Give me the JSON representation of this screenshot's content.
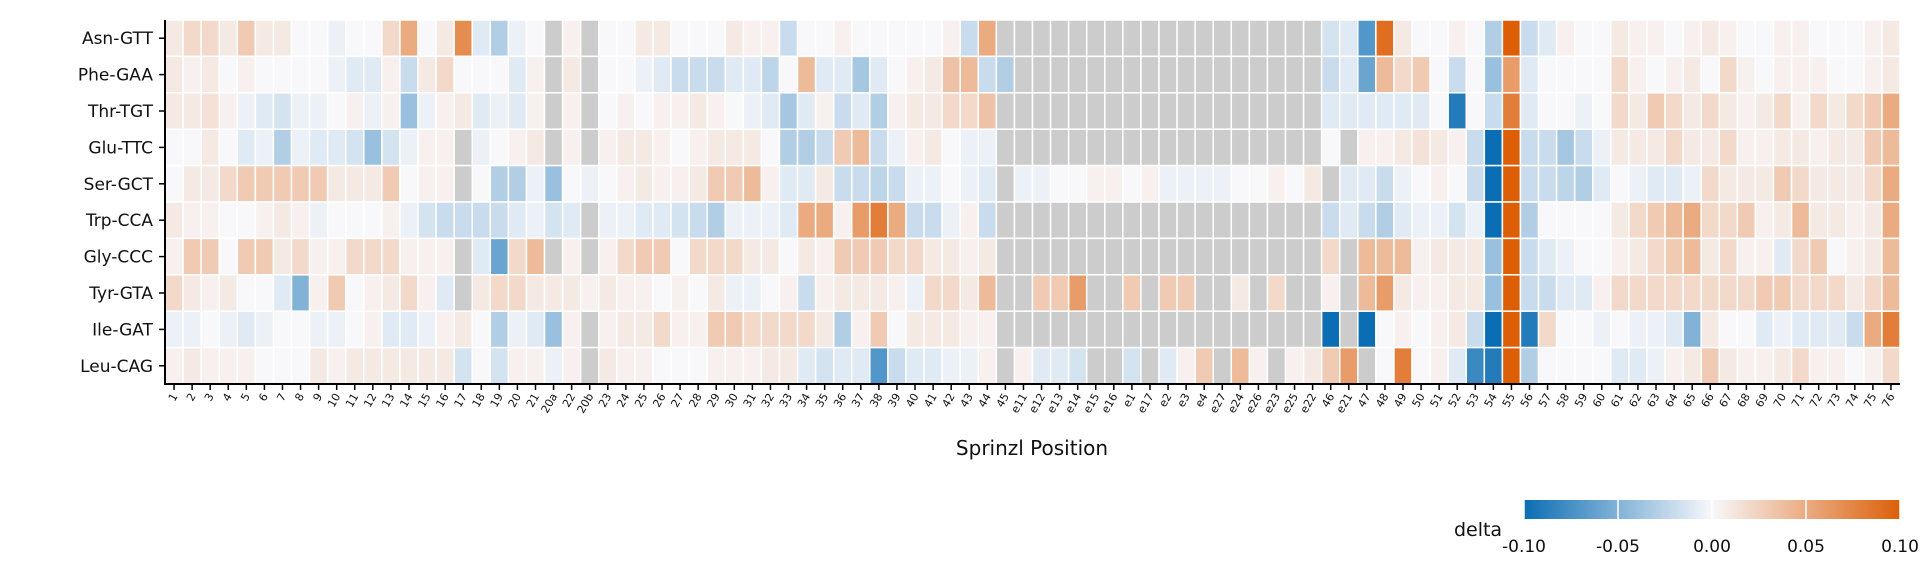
{
  "chart_data": {
    "type": "heatmap",
    "x_label": "Sprinzl Position",
    "categories": [
      "1",
      "2",
      "3",
      "4",
      "5",
      "6",
      "7",
      "8",
      "9",
      "10",
      "11",
      "12",
      "13",
      "14",
      "15",
      "16",
      "17",
      "18",
      "19",
      "20",
      "21",
      "20a",
      "22",
      "20b",
      "23",
      "24",
      "25",
      "26",
      "27",
      "28",
      "29",
      "30",
      "31",
      "32",
      "33",
      "34",
      "35",
      "36",
      "37",
      "38",
      "39",
      "40",
      "41",
      "42",
      "43",
      "44",
      "45",
      "e11",
      "e12",
      "e13",
      "e14",
      "e15",
      "e16",
      "e1",
      "e17",
      "e2",
      "e3",
      "e4",
      "e27",
      "e24",
      "e26",
      "e23",
      "e25",
      "e22",
      "46",
      "e21",
      "47",
      "48",
      "49",
      "50",
      "51",
      "52",
      "53",
      "54",
      "55",
      "56",
      "57",
      "58",
      "59",
      "60",
      "61",
      "62",
      "63",
      "64",
      "65",
      "66",
      "67",
      "68",
      "69",
      "70",
      "71",
      "72",
      "73",
      "74",
      "75",
      "76"
    ],
    "rows": [
      "Asn-GTT",
      "Phe-GAA",
      "Thr-TGT",
      "Glu-TTC",
      "Ser-GCT",
      "Trp-CCA",
      "Gly-CCC",
      "Tyr-GTA",
      "Ile-GAT",
      "Leu-CAG"
    ],
    "values": [
      [
        0.01,
        0.02,
        0.02,
        0.01,
        0.03,
        0.01,
        0.01,
        0,
        0,
        -0.005,
        0,
        0,
        0.02,
        0.05,
        0,
        0.01,
        0.07,
        -0.01,
        -0.03,
        -0.005,
        0,
        null,
        0.005,
        null,
        0,
        0,
        0.01,
        0.01,
        0,
        0,
        0,
        0.01,
        0.005,
        0.005,
        -0.02,
        0,
        0,
        0.005,
        0,
        0,
        0,
        0,
        0,
        0.005,
        -0.02,
        0.05,
        null,
        null,
        null,
        null,
        null,
        null,
        null,
        null,
        null,
        null,
        null,
        null,
        null,
        null,
        null,
        null,
        null,
        null,
        -0.015,
        -0.01,
        -0.07,
        0.09,
        0.01,
        0,
        0,
        0.005,
        0,
        -0.03,
        0.1,
        -0.02,
        -0.01,
        0.005,
        0,
        0,
        0.01,
        0.005,
        0.005,
        0,
        0.005,
        0.01,
        0.005,
        0,
        0,
        0.005,
        0.005,
        0,
        0,
        0,
        0.005,
        0.01
      ],
      [
        0.01,
        0.005,
        0.01,
        0,
        0.005,
        0,
        0,
        0,
        0,
        -0.005,
        -0.01,
        -0.01,
        0.005,
        -0.02,
        0.01,
        0.02,
        0,
        0,
        0,
        -0.01,
        0.005,
        null,
        0.01,
        null,
        0,
        0,
        -0.005,
        -0.01,
        -0.02,
        -0.02,
        -0.02,
        -0.01,
        -0.01,
        -0.025,
        0,
        0.04,
        -0.01,
        -0.01,
        -0.035,
        -0.01,
        0,
        0.005,
        0.01,
        0.035,
        0.04,
        -0.02,
        -0.03,
        null,
        null,
        null,
        null,
        null,
        null,
        null,
        null,
        null,
        null,
        null,
        null,
        null,
        null,
        null,
        null,
        null,
        -0.02,
        -0.01,
        -0.06,
        0.04,
        0.02,
        0.03,
        0,
        -0.02,
        0,
        -0.04,
        0.06,
        -0.01,
        0,
        0,
        0,
        0,
        0.02,
        0.005,
        0,
        0.005,
        0.01,
        0,
        0.02,
        0.005,
        0,
        0.005,
        0.005,
        0.005,
        0,
        0,
        0.005,
        0.01
      ],
      [
        0.01,
        0.01,
        0.015,
        0.005,
        -0.005,
        -0.01,
        -0.015,
        -0.005,
        -0.005,
        0,
        0.005,
        -0.005,
        0.005,
        -0.04,
        -0.005,
        0.005,
        0.01,
        -0.01,
        -0.005,
        -0.01,
        0.005,
        null,
        0.005,
        null,
        0,
        0.005,
        0,
        0.005,
        0.005,
        0.01,
        0.005,
        0,
        -0.005,
        -0.01,
        -0.035,
        -0.01,
        0.005,
        -0.02,
        -0.01,
        -0.03,
        0.005,
        0.01,
        0.01,
        0.02,
        0.02,
        0.035,
        null,
        null,
        null,
        null,
        null,
        null,
        null,
        null,
        null,
        null,
        null,
        null,
        null,
        null,
        null,
        null,
        null,
        null,
        -0.01,
        -0.01,
        -0.01,
        -0.01,
        -0.01,
        -0.01,
        0,
        -0.09,
        0,
        -0.02,
        0.08,
        -0.01,
        0,
        0,
        -0.005,
        0,
        0.02,
        0.01,
        0.03,
        0.02,
        0.01,
        0.02,
        0.01,
        0.005,
        0.01,
        0.02,
        0.005,
        0.02,
        0.01,
        0.02,
        0.03,
        0.05
      ],
      [
        0,
        0,
        0.01,
        0,
        -0.01,
        -0.005,
        -0.03,
        -0.005,
        -0.01,
        -0.01,
        -0.015,
        -0.04,
        -0.015,
        -0.005,
        0.005,
        0.005,
        null,
        -0.005,
        0,
        0.005,
        0.01,
        null,
        0.005,
        null,
        0.005,
        0.01,
        0.01,
        0.005,
        0,
        0.005,
        0.01,
        0.01,
        0.01,
        0,
        -0.03,
        -0.03,
        -0.02,
        0.03,
        0.04,
        -0.02,
        -0.005,
        0.005,
        0.01,
        0,
        -0.005,
        -0.005,
        null,
        null,
        null,
        null,
        null,
        null,
        null,
        null,
        null,
        null,
        null,
        null,
        null,
        null,
        null,
        null,
        null,
        null,
        0,
        null,
        0.005,
        0.005,
        0.01,
        0.015,
        0.01,
        0.005,
        -0.02,
        -0.1,
        0.1,
        -0.02,
        -0.02,
        -0.035,
        -0.02,
        -0.005,
        0.01,
        0.01,
        0.01,
        0.02,
        0.01,
        0.01,
        0.02,
        0.005,
        0.005,
        0.01,
        0.01,
        0.005,
        0.01,
        0.01,
        0.03,
        0.04
      ],
      [
        0,
        0.01,
        0.01,
        0.02,
        0.03,
        0.03,
        0.03,
        0.03,
        0.03,
        0.01,
        0.01,
        0.01,
        0.03,
        0,
        0.005,
        0.005,
        null,
        0,
        -0.03,
        -0.03,
        -0.005,
        -0.04,
        0,
        -0.005,
        0,
        0.005,
        0.01,
        0.005,
        0.005,
        0.01,
        0.03,
        0.03,
        0.04,
        0.005,
        -0.01,
        -0.01,
        0.01,
        -0.02,
        -0.02,
        -0.025,
        -0.02,
        -0.005,
        -0.005,
        0,
        -0.005,
        -0.01,
        null,
        -0.005,
        -0.005,
        0,
        0,
        0.005,
        0.005,
        0,
        0.005,
        -0.005,
        -0.005,
        -0.005,
        -0.005,
        0,
        0,
        0.005,
        0,
        0.01,
        null,
        -0.01,
        -0.01,
        -0.02,
        -0.005,
        0,
        0.005,
        0,
        -0.02,
        -0.1,
        0.1,
        -0.02,
        -0.02,
        -0.025,
        -0.03,
        -0.01,
        0,
        -0.005,
        -0.01,
        -0.01,
        -0.005,
        0.02,
        0.01,
        0.01,
        0.01,
        0.03,
        0.02,
        0.01,
        0.01,
        0.01,
        0.02,
        0.05
      ],
      [
        0.01,
        0.005,
        0.005,
        0,
        0,
        0.005,
        0.01,
        0.005,
        -0.005,
        0,
        0,
        0,
        0.005,
        -0.005,
        -0.015,
        -0.02,
        -0.02,
        -0.02,
        -0.02,
        -0.01,
        -0.005,
        -0.015,
        -0.01,
        null,
        -0.005,
        -0.005,
        -0.01,
        -0.01,
        -0.015,
        -0.02,
        -0.03,
        -0.005,
        -0.005,
        -0.005,
        -0.01,
        0.05,
        0.05,
        0.005,
        0.06,
        0.08,
        0.05,
        -0.02,
        -0.02,
        -0.005,
        0.005,
        -0.02,
        null,
        null,
        null,
        null,
        null,
        null,
        null,
        null,
        null,
        null,
        null,
        null,
        null,
        null,
        null,
        null,
        null,
        null,
        -0.02,
        -0.01,
        -0.02,
        -0.03,
        -0.01,
        -0.005,
        -0.005,
        -0.015,
        -0.005,
        -0.1,
        0.1,
        -0.03,
        0,
        0,
        0,
        0,
        0.01,
        0.02,
        0.03,
        0.04,
        0.05,
        0.02,
        0.02,
        0.03,
        0.005,
        0.01,
        0.04,
        0.01,
        0.01,
        0.005,
        0.01,
        0.05
      ],
      [
        0.005,
        0.03,
        0.03,
        0,
        0.03,
        0.03,
        0.01,
        0.02,
        0.005,
        0.005,
        0.02,
        0.02,
        0.02,
        0.005,
        0.005,
        0.005,
        null,
        -0.01,
        -0.06,
        0.02,
        0.04,
        null,
        0.005,
        null,
        0.005,
        0.02,
        0.03,
        0.03,
        0,
        0.02,
        0.02,
        0.02,
        0.01,
        0.01,
        0,
        0.01,
        0.005,
        0.03,
        0.03,
        0.03,
        0.02,
        0.02,
        0.01,
        0.01,
        0.005,
        0.01,
        null,
        null,
        null,
        null,
        null,
        null,
        null,
        null,
        null,
        null,
        null,
        null,
        null,
        null,
        null,
        null,
        null,
        null,
        0.02,
        null,
        0.04,
        0.04,
        0.04,
        0.005,
        0.01,
        0.01,
        0.01,
        -0.04,
        0.1,
        -0.02,
        -0.01,
        -0.005,
        0,
        0,
        0.005,
        0.01,
        0.02,
        0.03,
        0.04,
        0.01,
        0.02,
        0.005,
        0.005,
        -0.01,
        0.02,
        0.03,
        0,
        0.005,
        0.01,
        0.04
      ],
      [
        0.02,
        0.01,
        0.005,
        0.01,
        0,
        0,
        -0.01,
        -0.05,
        0.005,
        0.03,
        0,
        0.005,
        0.01,
        0.02,
        0.005,
        -0.01,
        null,
        0.01,
        0.02,
        0.02,
        0.01,
        0.01,
        0.01,
        0.005,
        0.01,
        0.005,
        0.005,
        0,
        0.005,
        0,
        0.01,
        -0.005,
        -0.005,
        0,
        0.005,
        -0.02,
        0.005,
        0.01,
        0.01,
        0.01,
        0.005,
        -0.005,
        0.02,
        0.02,
        0.01,
        0.04,
        null,
        null,
        0.03,
        0.03,
        0.06,
        null,
        null,
        0.03,
        null,
        0.03,
        0.03,
        null,
        null,
        0.01,
        null,
        0.02,
        null,
        null,
        0.005,
        null,
        0.04,
        0.06,
        0.01,
        0.005,
        0.005,
        0.01,
        0.01,
        -0.04,
        0.1,
        -0.02,
        -0.02,
        -0.01,
        -0.01,
        0.005,
        0.02,
        0.02,
        0.02,
        0.02,
        0.02,
        0.02,
        0.02,
        0.02,
        0.03,
        0.03,
        0.02,
        0.02,
        0.02,
        0.01,
        0.02,
        0.04
      ],
      [
        -0.005,
        -0.005,
        0,
        -0.005,
        -0.01,
        -0.005,
        0,
        0,
        -0.005,
        -0.005,
        0,
        0.005,
        -0.01,
        -0.01,
        -0.005,
        0.005,
        0.01,
        0,
        -0.03,
        -0.005,
        -0.01,
        -0.04,
        0.005,
        null,
        0.005,
        0.01,
        0.01,
        0.02,
        0.005,
        0.005,
        0.03,
        0.03,
        0.02,
        0.02,
        0.02,
        0.02,
        0.01,
        -0.03,
        0.005,
        0.03,
        0,
        0.01,
        0.01,
        0.01,
        0.005,
        0.005,
        null,
        null,
        null,
        null,
        null,
        null,
        null,
        null,
        null,
        null,
        null,
        null,
        null,
        null,
        null,
        null,
        null,
        null,
        -0.1,
        null,
        -0.1,
        0,
        0.005,
        0,
        0.005,
        0.01,
        -0.02,
        -0.1,
        0.1,
        -0.09,
        0.02,
        0,
        0,
        -0.005,
        0,
        -0.005,
        -0.005,
        -0.01,
        -0.05,
        0.01,
        0,
        0,
        -0.01,
        -0.005,
        -0.01,
        -0.01,
        -0.01,
        -0.02,
        0.05,
        0.08
      ],
      [
        0.005,
        0.01,
        0.005,
        0.005,
        0.005,
        0,
        0,
        0,
        0.01,
        0.005,
        0.01,
        0.01,
        0.01,
        0.01,
        0.01,
        0.01,
        -0.015,
        0,
        -0.015,
        0.005,
        0.005,
        -0.005,
        0.005,
        null,
        0.01,
        0.005,
        0.005,
        0,
        0,
        0,
        0.005,
        0.005,
        0.005,
        0.01,
        0.01,
        -0.01,
        -0.015,
        -0.01,
        -0.01,
        -0.07,
        -0.02,
        -0.01,
        -0.01,
        -0.005,
        -0.005,
        0.005,
        null,
        0.005,
        -0.01,
        -0.01,
        -0.015,
        null,
        null,
        -0.015,
        null,
        -0.01,
        0.005,
        0.03,
        null,
        0.04,
        0.005,
        null,
        0.005,
        0.01,
        0.03,
        0.06,
        null,
        0,
        0.08,
        0,
        0.005,
        -0.01,
        -0.08,
        -0.09,
        0.1,
        -0.03,
        0,
        0,
        0,
        0,
        -0.01,
        -0.01,
        -0.005,
        0.005,
        0.01,
        0.03,
        0.01,
        0.005,
        0.005,
        0.01,
        0.02,
        0.005,
        0.005,
        0,
        0.005,
        0.02
      ]
    ],
    "colormap": [
      "#0b6db3",
      "#f8f8fb",
      "#dc5f08"
    ],
    "missing_color": "#cccccc",
    "colorbar": {
      "label": "delta",
      "lim": [
        -0.1,
        0.1
      ],
      "ticks": [
        {
          "value": -0.1,
          "label": "-0.10"
        },
        {
          "value": -0.05,
          "label": "-0.05"
        },
        {
          "value": 0,
          "label": "0.00"
        },
        {
          "value": 0.05,
          "label": "0.05"
        },
        {
          "value": 0.1,
          "label": "0.10"
        }
      ]
    }
  }
}
